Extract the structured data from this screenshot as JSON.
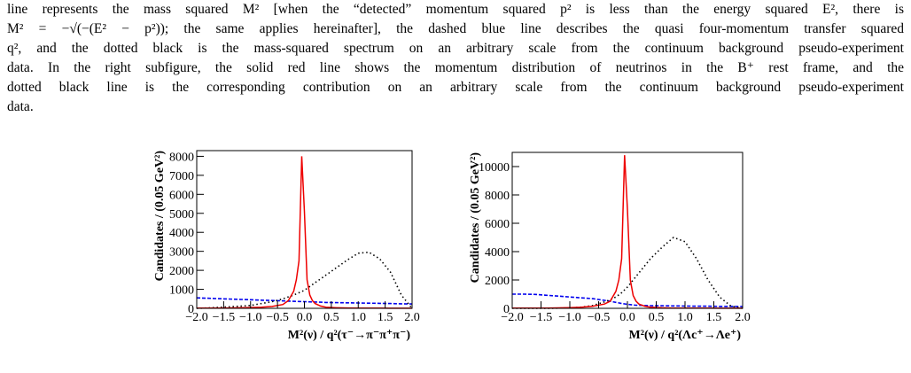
{
  "paragraph_lines": [
    "line represents the mass squared M² [when the “detected” momentum squared p² is less than the energy squared E², there is",
    "M² = −√(−(E² − p²)); the same applies hereinafter], the dashed blue line describes the quasi four-momentum transfer squared",
    "q², and the dotted black is the mass-squared spectrum on an arbitrary scale from the continuum background pseudo-experiment",
    "data.  In the right subfigure, the solid red line shows the momentum distribution of neutrinos in the B⁺ rest frame, and the",
    "dotted black line is the corresponding contribution on an arbitrary scale from the continuum background pseudo-experiment",
    "data."
  ],
  "chart_data": [
    {
      "type": "line",
      "xlabel": "M²(ν) / q²(τ⁻→π⁻π⁺π⁻)",
      "ylabel": "Candidates / (0.05 GeV²)",
      "x": [
        -2.0,
        -1.8,
        -1.6,
        -1.4,
        -1.2,
        -1.0,
        -0.8,
        -0.6,
        -0.4,
        -0.3,
        -0.2,
        -0.15,
        -0.1,
        -0.05,
        0,
        0.05,
        0.1,
        0.15,
        0.2,
        0.3,
        0.4,
        0.6,
        0.8,
        1.0,
        1.2,
        1.4,
        1.6,
        1.8,
        2.0
      ],
      "series": [
        {
          "color": "#0000ee",
          "style": "dashed",
          "values": [
            550,
            530,
            510,
            490,
            470,
            450,
            430,
            410,
            390,
            380,
            370,
            365,
            360,
            355,
            350,
            345,
            340,
            335,
            330,
            320,
            310,
            300,
            290,
            280,
            270,
            260,
            250,
            240,
            230
          ]
        },
        {
          "color": "#000000",
          "style": "dotted",
          "values": [
            0,
            20,
            50,
            80,
            110,
            150,
            250,
            350,
            500,
            600,
            700,
            760,
            820,
            880,
            950,
            1050,
            1150,
            1250,
            1350,
            1550,
            1750,
            2150,
            2550,
            2900,
            2950,
            2600,
            1900,
            700,
            0
          ]
        },
        {
          "color": "#ee0000",
          "style": "solid",
          "values": [
            10,
            10,
            15,
            20,
            30,
            40,
            60,
            100,
            200,
            400,
            900,
            1500,
            2500,
            8000,
            5100,
            1500,
            700,
            400,
            250,
            120,
            60,
            30,
            20,
            15,
            10,
            10,
            5,
            5,
            5
          ]
        }
      ],
      "xlim": [
        -2.0,
        2.0
      ],
      "ylim": [
        0,
        8300
      ],
      "xticks": [
        {
          "value": -2,
          "label": "−2.0"
        },
        {
          "value": -1.5,
          "label": "−1.5"
        },
        {
          "value": -1,
          "label": "−1.0"
        },
        {
          "value": -0.5,
          "label": "−0.5"
        },
        {
          "value": 0,
          "label": "0.0"
        },
        0.5,
        {
          "value": 1,
          "label": "1.0"
        },
        1.5,
        {
          "value": 2,
          "label": "2.0"
        }
      ],
      "yticks": [
        0,
        1000,
        2000,
        3000,
        4000,
        5000,
        6000,
        7000,
        8000
      ]
    },
    {
      "type": "line",
      "xlabel": "M²(ν) / q²(Λc⁺→Λe⁺)",
      "ylabel": "Candidates / (0.05 GeV²)",
      "x": [
        -2.0,
        -1.8,
        -1.6,
        -1.4,
        -1.2,
        -1.0,
        -0.8,
        -0.6,
        -0.4,
        -0.3,
        -0.2,
        -0.15,
        -0.1,
        -0.05,
        0,
        0.05,
        0.1,
        0.15,
        0.2,
        0.3,
        0.4,
        0.6,
        0.8,
        1.0,
        1.2,
        1.4,
        1.6,
        1.8,
        2.0
      ],
      "series": [
        {
          "color": "#0000ee",
          "style": "dashed",
          "values": [
            1000,
            1000,
            980,
            920,
            860,
            800,
            740,
            680,
            560,
            500,
            420,
            380,
            340,
            310,
            280,
            260,
            240,
            220,
            210,
            200,
            190,
            180,
            170,
            160,
            150,
            150,
            140,
            140,
            130
          ]
        },
        {
          "color": "#000000",
          "style": "dotted",
          "values": [
            0,
            0,
            0,
            0,
            10,
            30,
            80,
            200,
            450,
            600,
            800,
            950,
            1100,
            1300,
            1500,
            1750,
            2000,
            2250,
            2500,
            3000,
            3500,
            4300,
            5000,
            4700,
            3500,
            2000,
            800,
            150,
            0
          ]
        },
        {
          "color": "#ee0000",
          "style": "solid",
          "values": [
            10,
            10,
            15,
            20,
            30,
            50,
            80,
            150,
            300,
            500,
            1200,
            2000,
            3500,
            10800,
            7000,
            2000,
            900,
            500,
            300,
            150,
            80,
            40,
            20,
            15,
            10,
            10,
            5,
            5,
            5
          ]
        }
      ],
      "xlim": [
        -2.0,
        2.0
      ],
      "ylim": [
        0,
        11000
      ],
      "xticks": [
        {
          "value": -2,
          "label": "−2.0"
        },
        {
          "value": -1.5,
          "label": "−1.5"
        },
        {
          "value": -1,
          "label": "−1.0"
        },
        {
          "value": -0.5,
          "label": "−0.5"
        },
        {
          "value": 0,
          "label": "0.0"
        },
        0.5,
        {
          "value": 1,
          "label": "1.0"
        },
        1.5,
        {
          "value": 2,
          "label": "2.0"
        }
      ],
      "yticks": [
        0,
        2000,
        4000,
        6000,
        8000,
        10000
      ]
    }
  ]
}
